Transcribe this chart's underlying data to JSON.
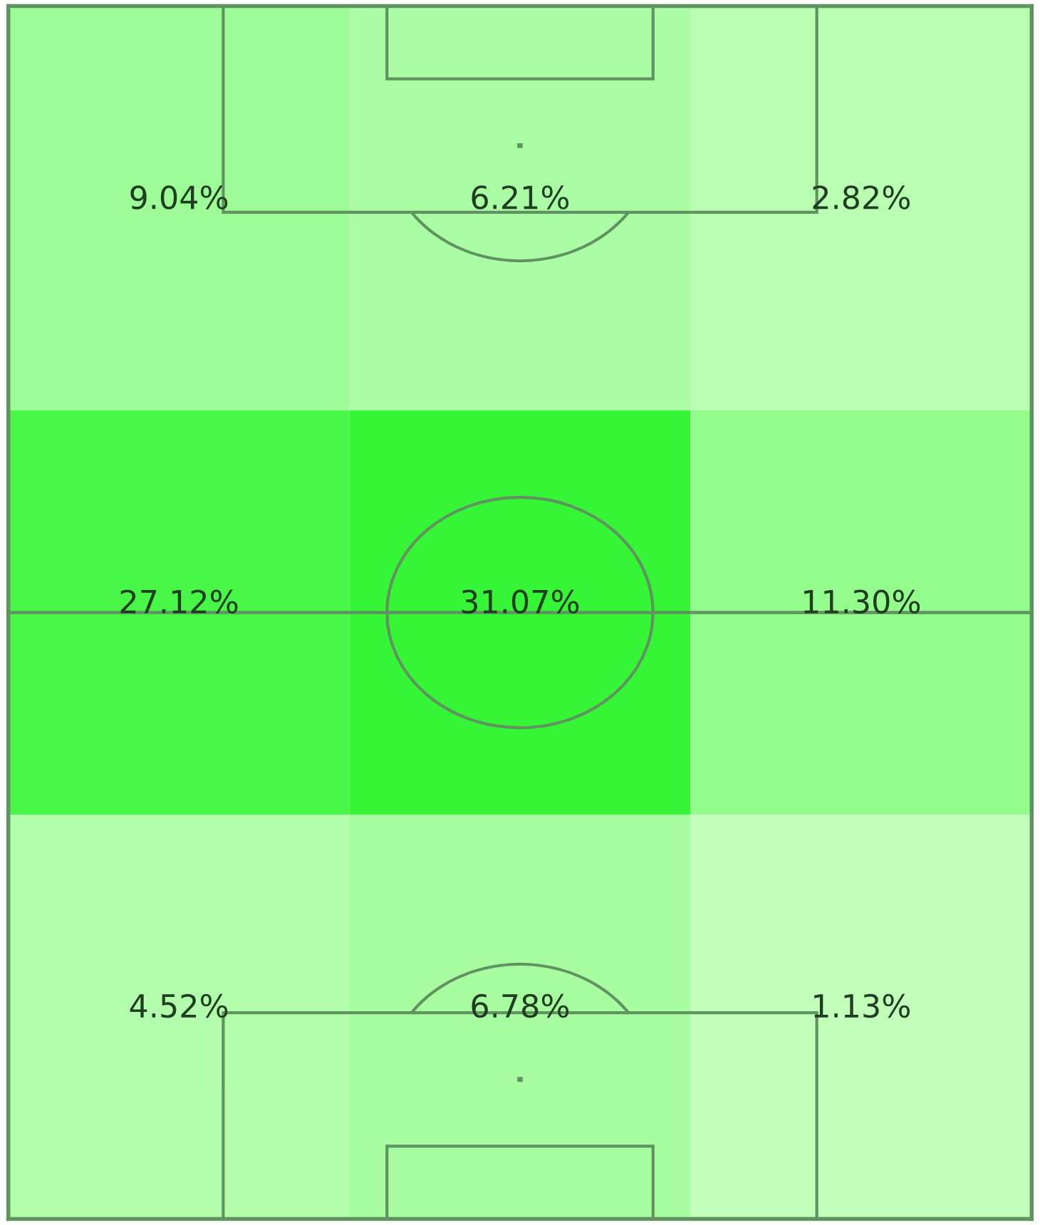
{
  "chart_data": {
    "type": "heatmap",
    "categories": [
      null,
      null,
      null
    ],
    "y_categories": [
      null,
      null,
      null
    ],
    "tick_labels": false,
    "cells": [
      [
        9.04,
        6.21,
        2.82
      ],
      [
        27.12,
        31.07,
        11.3
      ],
      [
        4.52,
        6.78,
        1.13
      ]
    ],
    "cell_labels": [
      [
        "9.04%",
        "6.21%",
        "2.82%"
      ],
      [
        "27.12%",
        "31.07%",
        "11.30%"
      ],
      [
        "4.52%",
        "6.78%",
        "1.13%"
      ]
    ]
  }
}
